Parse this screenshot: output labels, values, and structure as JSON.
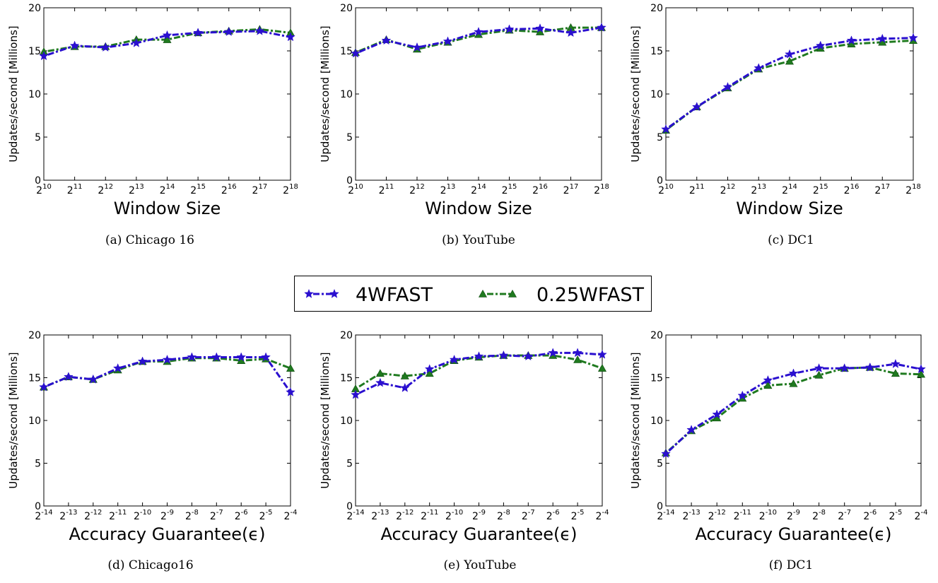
{
  "chart_data": [
    {
      "type": "line",
      "caption": "(a) Chicago 16",
      "xlabel": "Window Size",
      "ylabel": "Updates/second [Millions]",
      "x_tick_labels": [
        {
          "base": "2",
          "exp": "10"
        },
        {
          "base": "2",
          "exp": "11"
        },
        {
          "base": "2",
          "exp": "12"
        },
        {
          "base": "2",
          "exp": "13"
        },
        {
          "base": "2",
          "exp": "14"
        },
        {
          "base": "2",
          "exp": "15"
        },
        {
          "base": "2",
          "exp": "16"
        },
        {
          "base": "2",
          "exp": "17"
        },
        {
          "base": "2",
          "exp": "18"
        }
      ],
      "y_ticks": [
        0,
        5,
        10,
        15,
        20
      ],
      "ylim": [
        0,
        20
      ],
      "series": [
        {
          "name": "4WFAST",
          "values": [
            14.4,
            15.6,
            15.4,
            15.9,
            16.8,
            17.1,
            17.2,
            17.3,
            16.6
          ]
        },
        {
          "name": "0.25WFAST",
          "values": [
            14.9,
            15.5,
            15.5,
            16.3,
            16.3,
            17.1,
            17.3,
            17.5,
            17.1
          ]
        }
      ]
    },
    {
      "type": "line",
      "caption": "(b) YouTube",
      "xlabel": "Window Size",
      "ylabel": "Updates/second [Millions]",
      "x_tick_labels": [
        {
          "base": "2",
          "exp": "10"
        },
        {
          "base": "2",
          "exp": "11"
        },
        {
          "base": "2",
          "exp": "12"
        },
        {
          "base": "2",
          "exp": "13"
        },
        {
          "base": "2",
          "exp": "14"
        },
        {
          "base": "2",
          "exp": "15"
        },
        {
          "base": "2",
          "exp": "16"
        },
        {
          "base": "2",
          "exp": "17"
        },
        {
          "base": "2",
          "exp": "18"
        }
      ],
      "y_ticks": [
        0,
        5,
        10,
        15,
        20
      ],
      "ylim": [
        0,
        20
      ],
      "series": [
        {
          "name": "4WFAST",
          "values": [
            14.7,
            16.2,
            15.4,
            16.1,
            17.2,
            17.5,
            17.6,
            17.1,
            17.7
          ]
        },
        {
          "name": "0.25WFAST",
          "values": [
            14.8,
            16.3,
            15.2,
            16.0,
            16.9,
            17.4,
            17.2,
            17.7,
            17.7
          ]
        }
      ]
    },
    {
      "type": "line",
      "caption": "(c) DC1",
      "xlabel": "Window Size",
      "ylabel": "Updates/second [Millions]",
      "x_tick_labels": [
        {
          "base": "2",
          "exp": "10"
        },
        {
          "base": "2",
          "exp": "11"
        },
        {
          "base": "2",
          "exp": "12"
        },
        {
          "base": "2",
          "exp": "13"
        },
        {
          "base": "2",
          "exp": "14"
        },
        {
          "base": "2",
          "exp": "15"
        },
        {
          "base": "2",
          "exp": "16"
        },
        {
          "base": "2",
          "exp": "17"
        },
        {
          "base": "2",
          "exp": "18"
        }
      ],
      "y_ticks": [
        0,
        5,
        10,
        15,
        20
      ],
      "ylim": [
        0,
        20
      ],
      "series": [
        {
          "name": "4WFAST",
          "values": [
            5.9,
            8.5,
            10.8,
            13.0,
            14.6,
            15.6,
            16.2,
            16.4,
            16.5
          ]
        },
        {
          "name": "0.25WFAST",
          "values": [
            5.8,
            8.5,
            10.7,
            12.9,
            13.8,
            15.3,
            15.8,
            16.0,
            16.2
          ]
        }
      ]
    },
    {
      "type": "line",
      "caption": "(d) Chicago16",
      "xlabel": "Accuracy Guarantee(ϵ)",
      "ylabel": "Updates/second [Millions]",
      "x_tick_labels": [
        {
          "base": "2",
          "exp": "-14"
        },
        {
          "base": "2",
          "exp": "-13"
        },
        {
          "base": "2",
          "exp": "-12"
        },
        {
          "base": "2",
          "exp": "-11"
        },
        {
          "base": "2",
          "exp": "-10"
        },
        {
          "base": "2",
          "exp": "-9"
        },
        {
          "base": "2",
          "exp": "-8"
        },
        {
          "base": "2",
          "exp": "-7"
        },
        {
          "base": "2",
          "exp": "-6"
        },
        {
          "base": "2",
          "exp": "-5"
        },
        {
          "base": "2",
          "exp": "-4"
        }
      ],
      "y_ticks": [
        0,
        5,
        10,
        15,
        20
      ],
      "ylim": [
        0,
        20
      ],
      "series": [
        {
          "name": "4WFAST",
          "values": [
            13.9,
            15.1,
            14.8,
            16.1,
            16.9,
            17.1,
            17.4,
            17.4,
            17.4,
            17.4,
            13.3
          ]
        },
        {
          "name": "0.25WFAST",
          "values": [
            13.9,
            15.1,
            14.8,
            15.9,
            16.9,
            16.9,
            17.3,
            17.3,
            17.0,
            17.2,
            16.1
          ]
        }
      ]
    },
    {
      "type": "line",
      "caption": "(e) YouTube",
      "xlabel": "Accuracy Guarantee(ϵ)",
      "ylabel": "Updates/second [Millions]",
      "x_tick_labels": [
        {
          "base": "2",
          "exp": "-14"
        },
        {
          "base": "2",
          "exp": "-13"
        },
        {
          "base": "2",
          "exp": "-12"
        },
        {
          "base": "2",
          "exp": "-11"
        },
        {
          "base": "2",
          "exp": "-10"
        },
        {
          "base": "2",
          "exp": "-9"
        },
        {
          "base": "2",
          "exp": "-8"
        },
        {
          "base": "2",
          "exp": "-7"
        },
        {
          "base": "2",
          "exp": "-6"
        },
        {
          "base": "2",
          "exp": "-5"
        },
        {
          "base": "2",
          "exp": "-4"
        }
      ],
      "y_ticks": [
        0,
        5,
        10,
        15,
        20
      ],
      "ylim": [
        0,
        20
      ],
      "series": [
        {
          "name": "4WFAST",
          "values": [
            13.0,
            14.4,
            13.8,
            16.0,
            17.1,
            17.5,
            17.6,
            17.5,
            17.9,
            17.9,
            17.7
          ]
        },
        {
          "name": "0.25WFAST",
          "values": [
            13.7,
            15.5,
            15.2,
            15.5,
            17.0,
            17.4,
            17.6,
            17.6,
            17.6,
            17.1,
            16.1
          ]
        }
      ]
    },
    {
      "type": "line",
      "caption": "(f) DC1",
      "xlabel": "Accuracy Guarantee(ϵ)",
      "ylabel": "Updates/second [Millions]",
      "x_tick_labels": [
        {
          "base": "2",
          "exp": "-14"
        },
        {
          "base": "2",
          "exp": "-13"
        },
        {
          "base": "2",
          "exp": "-12"
        },
        {
          "base": "2",
          "exp": "-11"
        },
        {
          "base": "2",
          "exp": "-10"
        },
        {
          "base": "2",
          "exp": "-9"
        },
        {
          "base": "2",
          "exp": "-8"
        },
        {
          "base": "2",
          "exp": "-7"
        },
        {
          "base": "2",
          "exp": "-6"
        },
        {
          "base": "2",
          "exp": "-5"
        },
        {
          "base": "2",
          "exp": "-4"
        }
      ],
      "y_ticks": [
        0,
        5,
        10,
        15,
        20
      ],
      "ylim": [
        0,
        20
      ],
      "series": [
        {
          "name": "4WFAST",
          "values": [
            6.1,
            8.9,
            10.7,
            12.9,
            14.7,
            15.5,
            16.1,
            16.1,
            16.2,
            16.6,
            16.0
          ]
        },
        {
          "name": "0.25WFAST",
          "values": [
            6.2,
            8.8,
            10.3,
            12.6,
            14.1,
            14.3,
            15.3,
            16.1,
            16.2,
            15.5,
            15.4
          ]
        }
      ]
    }
  ],
  "legend": {
    "placement": "between-rows",
    "entries": [
      {
        "label": "4WFAST",
        "marker": "star",
        "color": "#2a0fcf"
      },
      {
        "label": "0.25WFAST",
        "marker": "triangle",
        "color": "#1f7a1f"
      }
    ]
  },
  "styles": {
    "series_colors": [
      "#2a0fcf",
      "#1f7a1f"
    ],
    "series_markers": [
      "star",
      "triangle"
    ]
  }
}
